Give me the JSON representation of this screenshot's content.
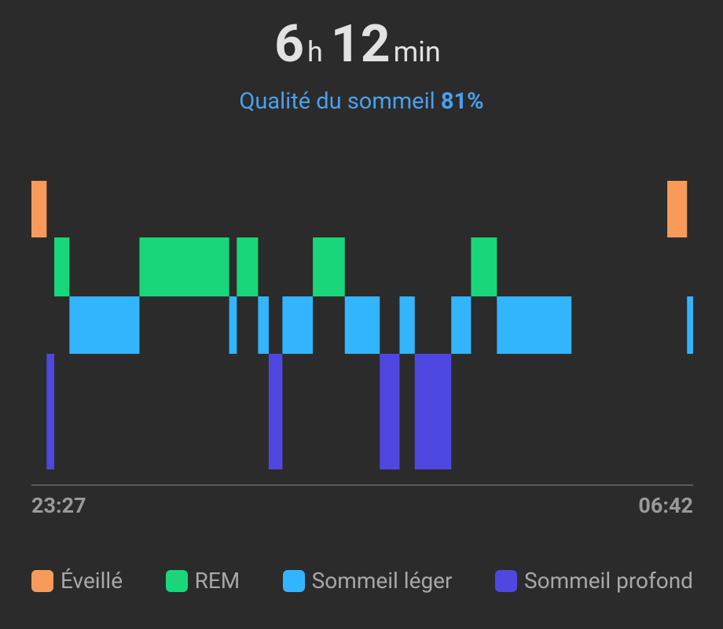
{
  "header": {
    "hours": "6",
    "hours_unit": "h",
    "minutes": "12",
    "minutes_unit": "min",
    "quality_label": "Qualité du sommeil",
    "quality": "81%"
  },
  "chart_data": {
    "type": "hypnogram",
    "xlim": [
      "23:27",
      "06:42"
    ],
    "xticks": [
      "23:27",
      "06:42"
    ],
    "series": [
      {
        "name": "Éveillé",
        "color": "#f79a5a",
        "intervals": [
          [
            "23:27",
            "23:37"
          ],
          [
            "06:25",
            "06:38"
          ]
        ]
      },
      {
        "name": "REM",
        "color": "#19d67a",
        "intervals": [
          [
            "23:42",
            "23:52"
          ],
          [
            "00:38",
            "01:37"
          ],
          [
            "01:42",
            "01:56"
          ],
          [
            "02:32",
            "02:53"
          ],
          [
            "04:16",
            "04:33"
          ]
        ]
      },
      {
        "name": "Sommeil léger",
        "color": "#33b5fd",
        "intervals": [
          [
            "23:52",
            "00:38"
          ],
          [
            "01:37",
            "01:42"
          ],
          [
            "01:56",
            "02:03"
          ],
          [
            "02:12",
            "02:32"
          ],
          [
            "02:53",
            "03:16"
          ],
          [
            "03:29",
            "03:39"
          ],
          [
            "04:03",
            "04:16"
          ],
          [
            "04:33",
            "05:22"
          ],
          [
            "06:38",
            "06:42"
          ]
        ]
      },
      {
        "name": "Sommeil profond",
        "color": "#4f48e0",
        "intervals": [
          [
            "23:37",
            "23:42"
          ],
          [
            "02:03",
            "02:12"
          ],
          [
            "03:16",
            "03:29"
          ],
          [
            "03:39",
            "04:03"
          ]
        ]
      }
    ]
  }
}
